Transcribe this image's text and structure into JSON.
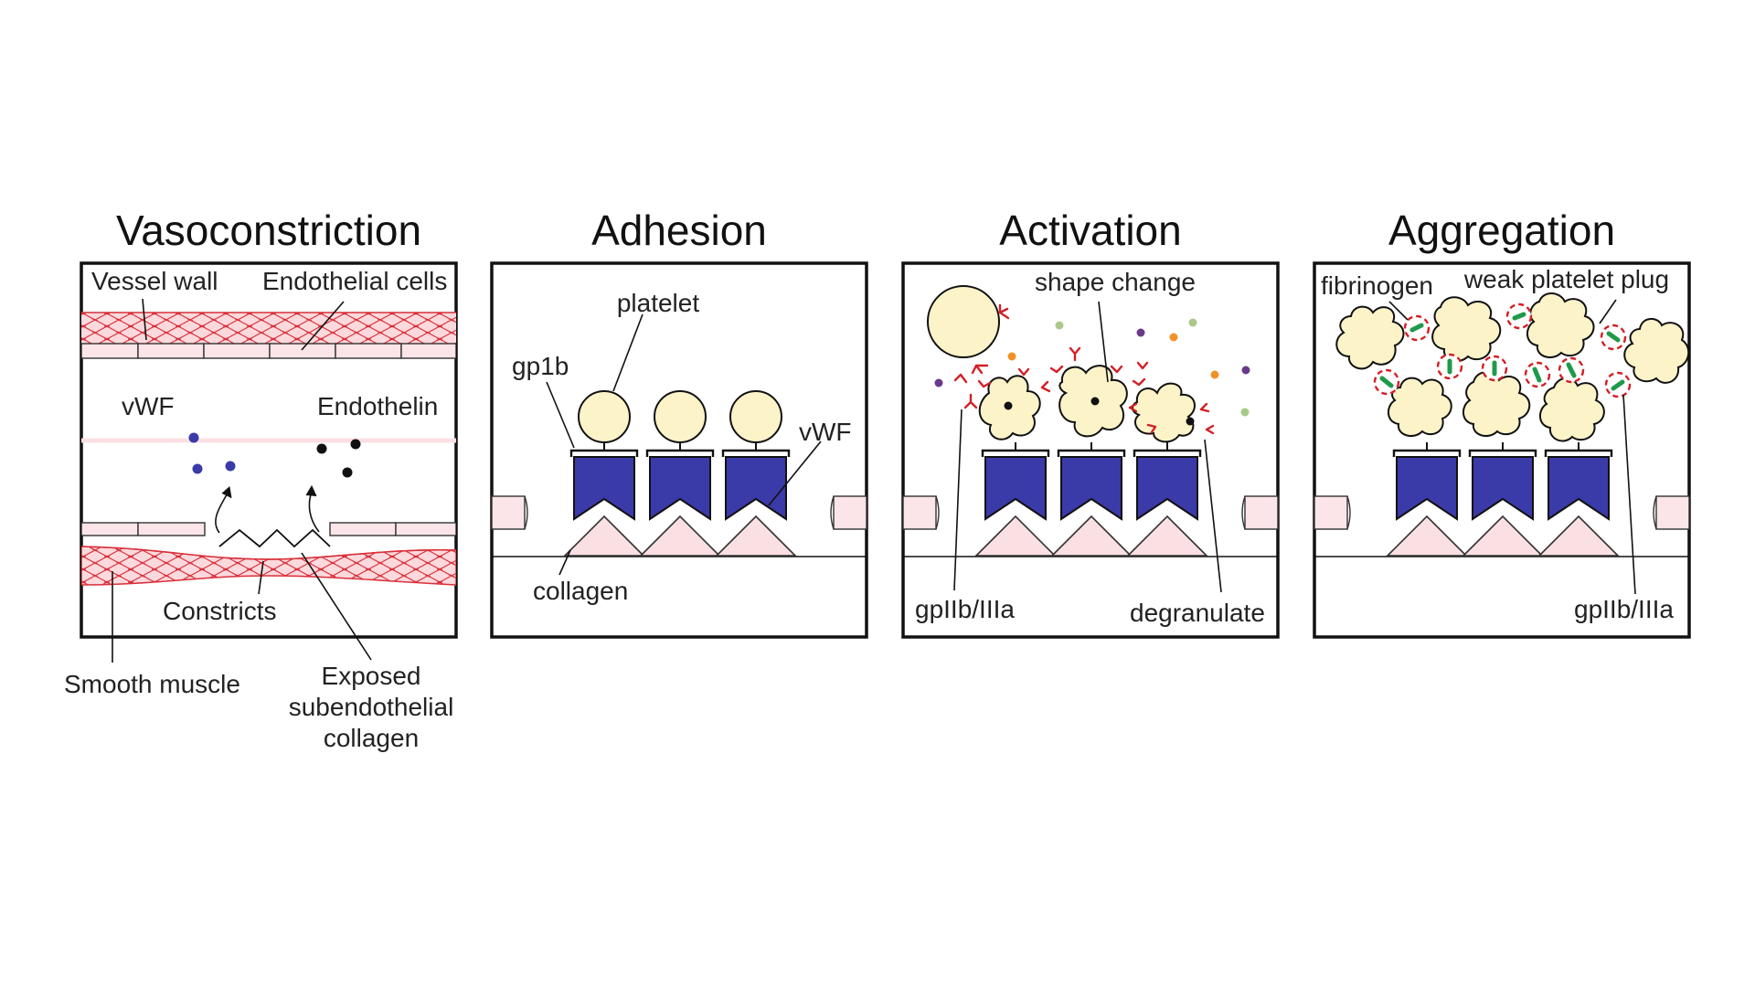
{
  "panels": [
    {
      "title": "Vasoconstriction",
      "labels": {
        "vessel_wall": "Vessel wall",
        "endothelial_cells": "Endothelial cells",
        "vwf": "vWF",
        "endothelin": "Endothelin",
        "constricts": "Constricts",
        "smooth_muscle": "Smooth muscle",
        "exposed_1": "Exposed",
        "exposed_2": "subendothelial",
        "exposed_3": "collagen"
      }
    },
    {
      "title": "Adhesion",
      "labels": {
        "platelet": "platelet",
        "gp1b": "gp1b",
        "vwf": "vWF",
        "collagen": "collagen"
      }
    },
    {
      "title": "Activation",
      "labels": {
        "shape_change": "shape change",
        "gpiib_iiia": "gpIIb/IIIa",
        "degranulate": "degranulate"
      }
    },
    {
      "title": "Aggregation",
      "labels": {
        "fibrinogen": "fibrinogen",
        "weak_plug": "weak platelet plug",
        "gpiib_iiia": "gpIIb/IIIa"
      }
    }
  ],
  "colors": {
    "vwf_blue": "#3a3aa8",
    "collagen_pink": "#fbe0e3",
    "platelet_cream": "#fdf3c9",
    "receptor_red": "#d41f26",
    "fibrinogen_green": "#1f9a4a",
    "muscle_red": "#d9303a",
    "endothelin_black": "#111111",
    "granule_purple": "#6a3a8a",
    "granule_orange": "#f0922a",
    "granule_green": "#a9c98a"
  }
}
